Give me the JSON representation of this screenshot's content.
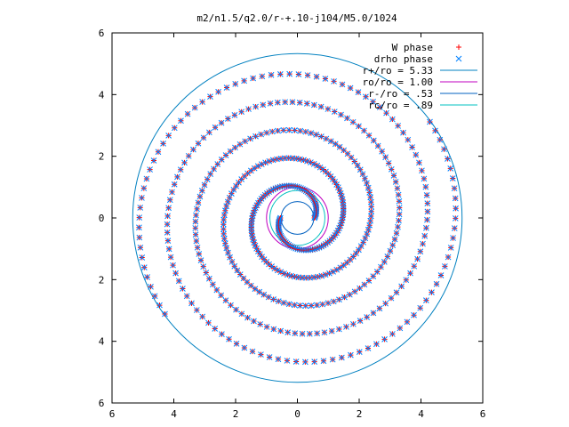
{
  "chart_data": {
    "type": "scatter",
    "title": "m2/n1.5/q2.0/r-+.10-j104/M5.0/1024",
    "xlim": [
      -6,
      6
    ],
    "ylim": [
      -6,
      6
    ],
    "x_ticks": [
      -6,
      -4,
      -2,
      0,
      2,
      4,
      6
    ],
    "y_ticks": [
      -6,
      -4,
      -2,
      0,
      2,
      4,
      6
    ],
    "x_tick_labels": [
      "6",
      "4",
      "2",
      "0",
      "2",
      "4",
      "6"
    ],
    "y_tick_labels": [
      "6",
      "4",
      "2",
      "0",
      "2",
      "4",
      "6"
    ],
    "grid": false,
    "legend_position": "top-right",
    "series": [
      {
        "name": "W phase",
        "marker": "plus",
        "color": "#ff0000",
        "style": "points"
      },
      {
        "name": "drho phase",
        "marker": "cross",
        "color": "#0080ff",
        "style": "points"
      },
      {
        "name": "r+/ro = 5.33",
        "style": "circle",
        "radius": 5.33,
        "color": "#0080c0"
      },
      {
        "name": "ro/ro = 1.00",
        "style": "circle",
        "radius": 1.0,
        "color": "#c000c0"
      },
      {
        "name": "r-/ro = .53",
        "style": "circle",
        "radius": 0.53,
        "color": "#0060c0"
      },
      {
        "name": "rc/ro = .89",
        "style": "circle",
        "radius": 0.89,
        "color": "#00c0c0"
      }
    ],
    "spiral_arms": {
      "count": 2,
      "r_inner": 0.55,
      "r_outer": 5.3,
      "turns": 2.6
    }
  }
}
